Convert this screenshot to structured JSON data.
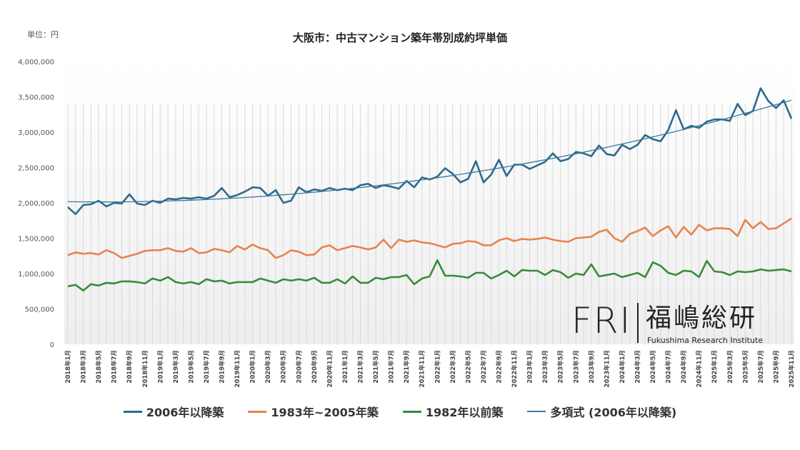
{
  "chart_data": {
    "type": "line",
    "title": "大阪市：中古マンション築年帯別成約坪単価",
    "unit_label": "単位：円",
    "ylim": [
      0,
      4000000
    ],
    "y_ticks": [
      "0",
      "500,000",
      "1,000,000",
      "1,500,000",
      "2,000,000",
      "2,500,000",
      "3,000,000",
      "3,500,000",
      "4,000,000"
    ],
    "x_start": "2018-01",
    "x_tick_labels": [
      "2018年1月",
      "2018年3月",
      "2018年5月",
      "2018年7月",
      "2018年9月",
      "2018年11月",
      "2019年1月",
      "2019年3月",
      "2019年5月",
      "2019年7月",
      "2019年9月",
      "2019年11月",
      "2020年1月",
      "2020年3月",
      "2020年5月",
      "2020年7月",
      "2020年9月",
      "2020年11月",
      "2021年1月",
      "2021年3月",
      "2021年5月",
      "2021年7月",
      "2021年9月",
      "2021年11月",
      "2022年1月",
      "2022年3月",
      "2022年5月",
      "2022年7月",
      "2022年9月",
      "2022年11月",
      "2023年1月",
      "2023年3月",
      "2023年5月",
      "2023年7月",
      "2023年9月",
      "2023年11月",
      "2024年1月",
      "2024年3月",
      "2024年5月",
      "2024年7月",
      "2024年9月",
      "2024年11月",
      "2025年1月",
      "2025年3月",
      "2025年5月",
      "2025年7月",
      "2025年9月",
      "2025年11月"
    ],
    "grid": "vertical",
    "legend_position": "bottom",
    "series": [
      {
        "name": "2006年以降築",
        "color": "#2e6a8e",
        "values": [
          1940000,
          1840000,
          1970000,
          1980000,
          2030000,
          1950000,
          2000000,
          1990000,
          2120000,
          1990000,
          1970000,
          2030000,
          2000000,
          2060000,
          2050000,
          2070000,
          2060000,
          2080000,
          2060000,
          2100000,
          2210000,
          2080000,
          2110000,
          2160000,
          2220000,
          2210000,
          2100000,
          2180000,
          2000000,
          2030000,
          2220000,
          2150000,
          2190000,
          2170000,
          2210000,
          2180000,
          2200000,
          2180000,
          2250000,
          2270000,
          2210000,
          2250000,
          2230000,
          2200000,
          2310000,
          2220000,
          2360000,
          2330000,
          2370000,
          2490000,
          2410000,
          2290000,
          2340000,
          2590000,
          2290000,
          2400000,
          2610000,
          2380000,
          2540000,
          2540000,
          2480000,
          2530000,
          2580000,
          2700000,
          2590000,
          2620000,
          2720000,
          2700000,
          2660000,
          2810000,
          2690000,
          2670000,
          2820000,
          2760000,
          2820000,
          2960000,
          2900000,
          2870000,
          3030000,
          3310000,
          3040000,
          3090000,
          3060000,
          3150000,
          3180000,
          3180000,
          3160000,
          3400000,
          3240000,
          3300000,
          3620000,
          3440000,
          3340000,
          3450000,
          3190000
        ]
      },
      {
        "name": "1983年~2005年築",
        "color": "#e8824f",
        "values": [
          1260000,
          1300000,
          1280000,
          1290000,
          1270000,
          1330000,
          1290000,
          1220000,
          1250000,
          1280000,
          1320000,
          1330000,
          1330000,
          1360000,
          1320000,
          1310000,
          1360000,
          1290000,
          1300000,
          1350000,
          1330000,
          1300000,
          1390000,
          1340000,
          1410000,
          1360000,
          1330000,
          1220000,
          1260000,
          1330000,
          1310000,
          1260000,
          1270000,
          1370000,
          1400000,
          1330000,
          1360000,
          1390000,
          1370000,
          1340000,
          1370000,
          1480000,
          1360000,
          1480000,
          1450000,
          1470000,
          1440000,
          1430000,
          1400000,
          1370000,
          1420000,
          1430000,
          1460000,
          1450000,
          1400000,
          1400000,
          1470000,
          1500000,
          1460000,
          1490000,
          1480000,
          1490000,
          1510000,
          1480000,
          1460000,
          1450000,
          1500000,
          1510000,
          1520000,
          1590000,
          1620000,
          1500000,
          1450000,
          1560000,
          1600000,
          1650000,
          1530000,
          1610000,
          1670000,
          1510000,
          1660000,
          1550000,
          1690000,
          1610000,
          1640000,
          1640000,
          1630000,
          1530000,
          1760000,
          1640000,
          1730000,
          1630000,
          1640000,
          1710000,
          1780000
        ]
      },
      {
        "name": "1982年以前築",
        "color": "#3a8a3c",
        "values": [
          820000,
          840000,
          760000,
          850000,
          830000,
          870000,
          860000,
          890000,
          890000,
          880000,
          860000,
          930000,
          900000,
          950000,
          880000,
          860000,
          880000,
          850000,
          920000,
          890000,
          900000,
          860000,
          880000,
          880000,
          880000,
          930000,
          900000,
          870000,
          920000,
          900000,
          920000,
          900000,
          940000,
          870000,
          870000,
          920000,
          860000,
          960000,
          870000,
          870000,
          940000,
          920000,
          950000,
          950000,
          980000,
          850000,
          930000,
          960000,
          1190000,
          970000,
          970000,
          960000,
          940000,
          1010000,
          1010000,
          930000,
          980000,
          1040000,
          960000,
          1050000,
          1040000,
          1040000,
          980000,
          1050000,
          1020000,
          940000,
          1000000,
          980000,
          1130000,
          960000,
          980000,
          1000000,
          950000,
          980000,
          1010000,
          950000,
          1160000,
          1110000,
          1010000,
          980000,
          1040000,
          1030000,
          950000,
          1180000,
          1030000,
          1020000,
          980000,
          1030000,
          1020000,
          1030000,
          1060000,
          1040000,
          1050000,
          1060000,
          1030000
        ]
      }
    ],
    "trendline": {
      "name": "多項式 (2006年以降築)",
      "type": "polynomial",
      "of_series": "2006年以降築",
      "color": "#3b7a9e"
    }
  },
  "logo": {
    "mark": "FRI",
    "name_jp": "福嶋総研",
    "name_en": "Fukushima Research Institute"
  }
}
